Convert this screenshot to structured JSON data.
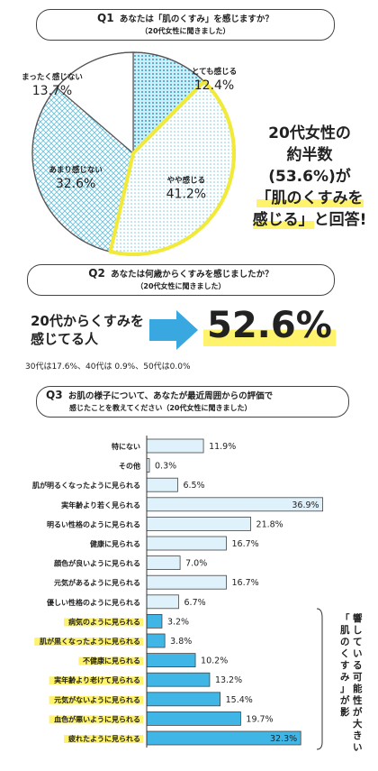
{
  "q1": {
    "num": "Q1",
    "question": "あなたは「肌のくすみ」を感じますか？",
    "subtitle": "（20代女性に聞きました）"
  },
  "q2": {
    "num": "Q2",
    "question": "あなたは何歳からくすみを感じましたか？",
    "subtitle": "（20代女性に聞きました）",
    "lead_line1": "20代からくすみを",
    "lead_line2": "感じてる人",
    "value": "52.6%",
    "note": "30代は17.6%、40代は 0.9%、50代は0.0%"
  },
  "q3": {
    "num": "Q3",
    "question_line1": "お肌の様子について、あなたが最近周囲からの評価で",
    "question_line2": "感じたことを教えてください（20代女性に聞きました）",
    "side_note": "「肌のくすみ」が影響している可能性が大きい"
  },
  "callout": {
    "line1": "20代女性の",
    "line2": "約半数",
    "line3": "(53.6%)が",
    "line4": "「肌のくすみを",
    "line5": "感じる」",
    "line6": "と回答!"
  },
  "chart_data": [
    {
      "type": "pie",
      "title": "あなたは「肌のくすみ」を感じますか？",
      "slices": [
        {
          "label": "とても感じる",
          "value": 12.4,
          "value_label": "12.4%"
        },
        {
          "label": "やや感じる",
          "value": 41.2,
          "value_label": "41.2%"
        },
        {
          "label": "あまり感じない",
          "value": 32.6,
          "value_label": "32.6%"
        },
        {
          "label": "まったく感じない",
          "value": 13.7,
          "value_label": "13.7%"
        }
      ],
      "colors": {
        "outline": "#2a6a8a",
        "highlight": "#f2ea3a",
        "dot": "#3aa8c8"
      }
    },
    {
      "type": "bar",
      "orientation": "horizontal",
      "title": "お肌の様子について、あなたが最近周囲からの評価で感じたことを教えてください",
      "xlim": [
        0,
        40
      ],
      "categories": [
        "特にない",
        "その他",
        "肌が明るくなったように見られる",
        "実年齢より若く見られる",
        "明るい性格のように見られる",
        "健康に見られる",
        "顔色が良いように見られる",
        "元気があるように見られる",
        "優しい性格のように見られる",
        "病気のように見られる",
        "肌が黒くなったように見られる",
        "不健康に見られる",
        "実年齢より老けて見られる",
        "元気がないように見られる",
        "血色が悪いように見られる",
        "疲れたように見られる"
      ],
      "values": [
        11.9,
        0.3,
        6.5,
        36.9,
        21.8,
        16.7,
        7.0,
        16.7,
        6.7,
        3.2,
        3.8,
        10.2,
        13.2,
        15.4,
        19.7,
        32.3
      ],
      "value_labels": [
        "11.9%",
        "0.3%",
        "6.5%",
        "36.9%",
        "21.8%",
        "16.7%",
        "7.0%",
        "16.7%",
        "6.7%",
        "3.2%",
        "3.8%",
        "10.2%",
        "13.2%",
        "15.4%",
        "19.7%",
        "32.3%"
      ],
      "highlighted_from_index": 9,
      "colors": {
        "light": "#dff1fb",
        "dark": "#3fb6e6",
        "label_highlight": "#fff36b"
      }
    }
  ]
}
